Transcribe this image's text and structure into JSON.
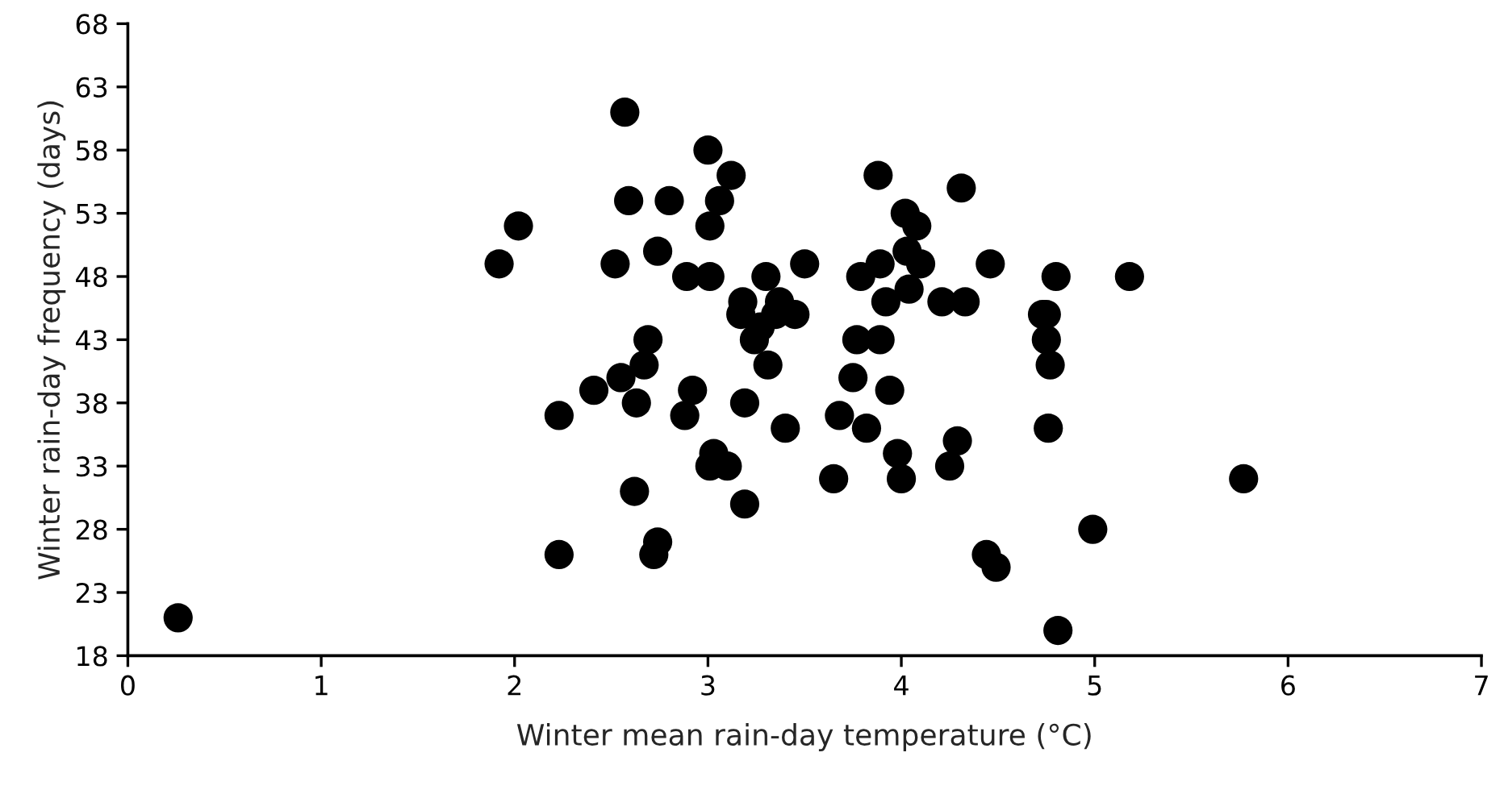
{
  "chart_data": {
    "type": "scatter",
    "xlabel": "Winter mean rain-day temperature (°C)",
    "ylabel": "Winter rain-day frequency (days)",
    "xlim": [
      0,
      7
    ],
    "xticks": [
      0,
      1,
      2,
      3,
      4,
      5,
      6,
      7
    ],
    "ylim": [
      18,
      68
    ],
    "yticks": [
      18,
      23,
      28,
      33,
      38,
      43,
      48,
      53,
      58,
      63,
      68
    ],
    "grid": false,
    "legend": false,
    "marker": "circle",
    "series": [
      {
        "color": "#000000",
        "x": [
          0.26,
          1.92,
          2.02,
          2.23,
          2.23,
          2.41,
          2.52,
          2.55,
          2.57,
          2.59,
          2.62,
          2.63,
          2.67,
          2.69,
          2.72,
          2.74,
          2.74,
          2.8,
          2.88,
          2.89,
          2.92,
          3.0,
          3.01,
          3.01,
          3.01,
          3.03,
          3.06,
          3.1,
          3.12,
          3.17,
          3.18,
          3.19,
          3.19,
          3.24,
          3.27,
          3.3,
          3.31,
          3.35,
          3.37,
          3.4,
          3.45,
          3.5,
          3.65,
          3.68,
          3.75,
          3.77,
          3.79,
          3.82,
          3.88,
          3.89,
          3.89,
          3.92,
          3.94,
          3.98,
          4.0,
          4.02,
          4.03,
          4.04,
          4.08,
          4.1,
          4.21,
          4.25,
          4.29,
          4.31,
          4.33,
          4.44,
          4.46,
          4.49,
          4.73,
          4.75,
          4.75,
          4.76,
          4.77,
          4.8,
          4.81,
          4.99,
          5.18,
          5.77
        ],
        "values": [
          21,
          49,
          52,
          37,
          26,
          39,
          49,
          40,
          61,
          54,
          31,
          38,
          41,
          43,
          26,
          27,
          50,
          54,
          37,
          48,
          39,
          58,
          52,
          48,
          33,
          34,
          54,
          33,
          56,
          45,
          46,
          38,
          30,
          43,
          44,
          48,
          41,
          45,
          46,
          36,
          45,
          49,
          32,
          37,
          40,
          43,
          48,
          36,
          56,
          49,
          43,
          46,
          39,
          34,
          32,
          53,
          50,
          47,
          52,
          49,
          46,
          33,
          35,
          55,
          46,
          26,
          49,
          25,
          45,
          45,
          43,
          36,
          41,
          48,
          20,
          28,
          48,
          32
        ]
      }
    ]
  }
}
